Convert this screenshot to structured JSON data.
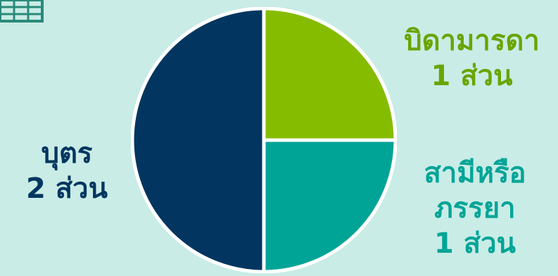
{
  "colors": {
    "background": "#c9ece6",
    "icon": "#2a8a7a"
  },
  "icons": {
    "corner": "book-icon"
  },
  "chart_data": {
    "type": "pie",
    "unit": "ส่วน",
    "slices": [
      {
        "lines": [
          "บิดามารดา",
          "1 ส่วน"
        ],
        "value": 1,
        "color": "#86bc00",
        "text_color": "#6aa400"
      },
      {
        "lines": [
          "สามีหรือ",
          "ภรรยา",
          "1 ส่วน"
        ],
        "value": 1,
        "color": "#00a497",
        "text_color": "#00a497"
      },
      {
        "lines": [
          "บุตร",
          "2 ส่วน"
        ],
        "value": 2,
        "color": "#023660",
        "text_color": "#023660"
      }
    ],
    "title": "",
    "legend": "none",
    "labels_placement": "outside"
  }
}
